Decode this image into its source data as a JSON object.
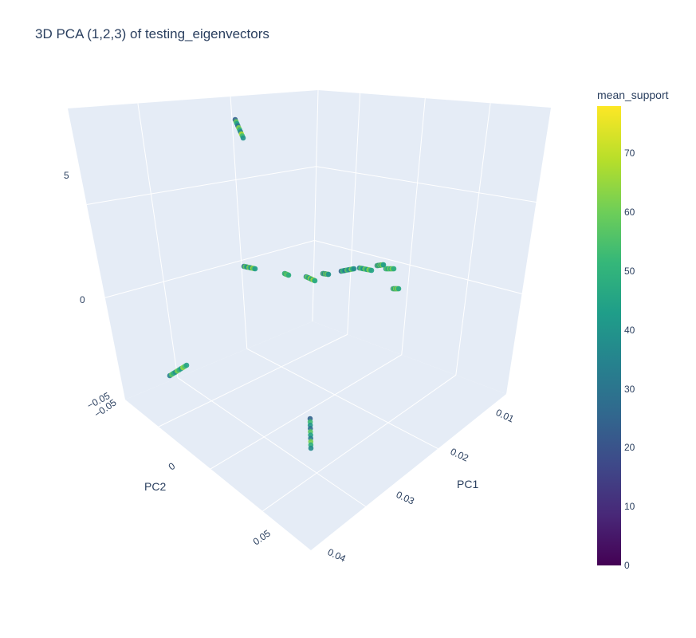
{
  "title": "3D PCA (1,2,3) of testing_eigenvectors",
  "colorbar": {
    "title": "mean_support",
    "colorscale": "Viridis",
    "range": [
      0,
      78
    ],
    "ticks": [
      "0",
      "10",
      "20",
      "30",
      "40",
      "50",
      "60",
      "70"
    ]
  },
  "colors": {
    "scene_bg": "#e5ecf6",
    "grid": "#ffffff",
    "text": "#2a3f5f"
  },
  "chart_data": {
    "type": "scatter3d",
    "title": "3D PCA (1,2,3) of testing_eigenvectors",
    "axes": {
      "x": {
        "label": "PC1",
        "range": [
          0.005,
          0.04
        ],
        "ticks": [
          "0.01",
          "0.02",
          "0.03",
          "0.04"
        ]
      },
      "y": {
        "label": "PC2",
        "range": [
          -0.05,
          0.07
        ],
        "ticks": [
          "−0.05",
          "0",
          "0.05"
        ]
      },
      "z": {
        "label": "",
        "range": [
          -3,
          7.5
        ],
        "ticks": [
          "−0.05",
          "0",
          "5"
        ]
      }
    },
    "color_variable": "mean_support",
    "clusters": [
      {
        "pc1": 0.008,
        "pc2": -0.045,
        "pc3": [
          5.2,
          7.2
        ],
        "mean_support": [
          25,
          68
        ]
      },
      {
        "pc1": 0.038,
        "pc2": 0.045,
        "pc3": [
          -3.2,
          -2.4
        ],
        "mean_support": [
          25,
          62
        ]
      },
      {
        "pc1": 0.034,
        "pc2": -0.048,
        "pc3": [
          -0.3,
          0.1
        ],
        "mean_support": [
          35,
          65
        ]
      },
      {
        "pc1": 0.015,
        "pc2": -0.02,
        "pc3": [
          0.2,
          1.0
        ],
        "mean_support": [
          30,
          68
        ]
      },
      {
        "pc1": 0.02,
        "pc2": 0.0,
        "pc3": [
          0.0,
          0.5
        ],
        "mean_support": [
          40,
          65
        ]
      },
      {
        "pc1": 0.025,
        "pc2": 0.02,
        "pc3": [
          0.0,
          0.6
        ],
        "mean_support": [
          35,
          70
        ]
      }
    ]
  }
}
